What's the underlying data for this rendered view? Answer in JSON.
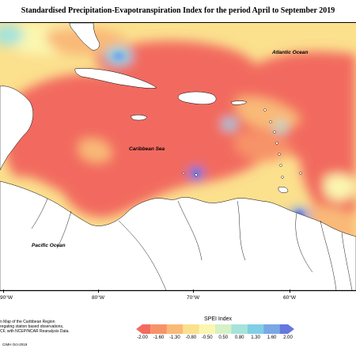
{
  "title": "Standardised Precipitation-Evapotranspiration Index for the period April to September 2019",
  "ocean_labels": {
    "atlantic": "Atlantic Ocean",
    "caribbean": "Caribbean Sea",
    "pacific": "Pacific Ocean"
  },
  "longitude_ticks": [
    "90°W",
    "80°W",
    "70°W",
    "60°W"
  ],
  "legend": {
    "title": "SPEI Index",
    "values": [
      "-2.00",
      "-1.60",
      "-1.30",
      "-0.80",
      "-0.50",
      "0.50",
      "0.80",
      "1.30",
      "1.60",
      "2.00"
    ],
    "colors": [
      "#f26b5e",
      "#f79368",
      "#f9b978",
      "#fbe08e",
      "#fbf6b0",
      "#d6f0c8",
      "#a6e3da",
      "#7fcfe6",
      "#7aa7e6",
      "#6677df"
    ]
  },
  "caption_lines": [
    "n Map of the Caribbean Region",
    "regating station based observations,",
    "CF, with NCEP/NCAR Reanalysis Data."
  ],
  "copyright": "CIMH Oct-2019"
}
